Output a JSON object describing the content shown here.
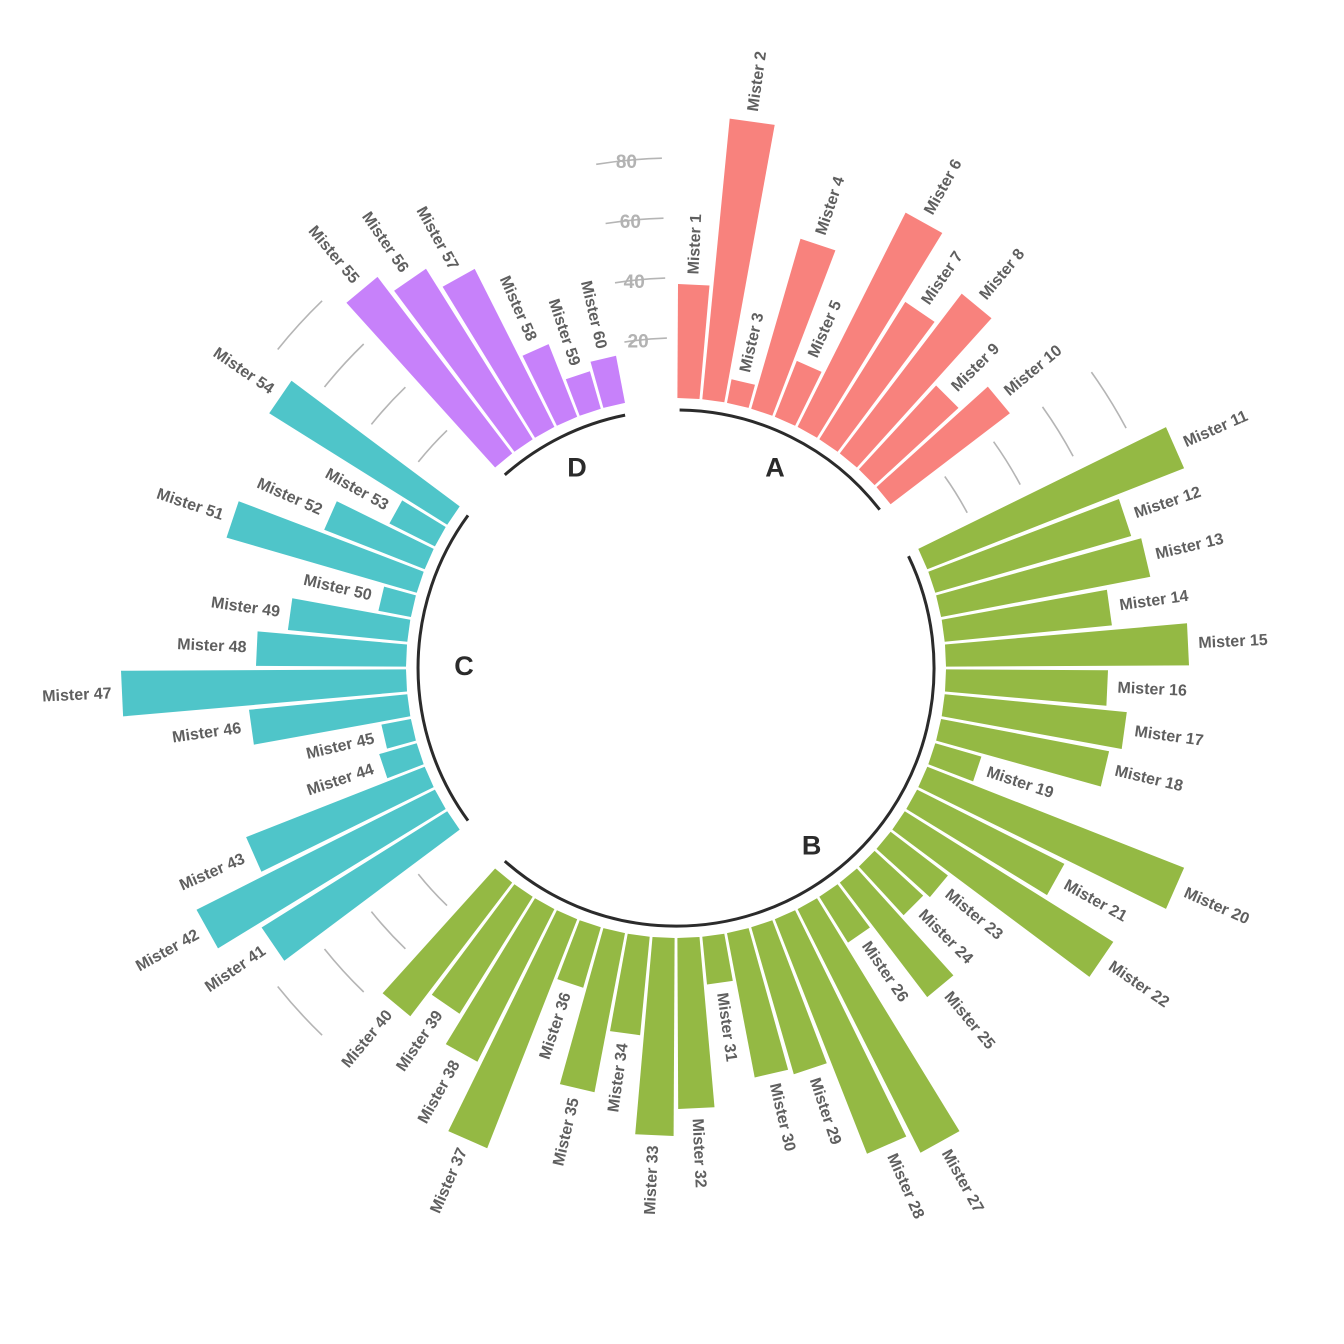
{
  "chart_data": {
    "type": "bar",
    "layout": "circular",
    "title": "",
    "xlabel": "",
    "ylabel": "",
    "ylim": [
      0,
      100
    ],
    "y_ticks": [
      20,
      40,
      60,
      80
    ],
    "y_tick_labels": [
      "20",
      "40",
      "60",
      "80"
    ],
    "grid": true,
    "legend": "none",
    "group_colors": {
      "A": "#f8827d",
      "B": "#94b944",
      "C": "#4fc5c9",
      "D": "#c781fa"
    },
    "groups": [
      "A",
      "B",
      "C",
      "D"
    ],
    "categories": [
      "Mister 1",
      "Mister 2",
      "Mister 3",
      "Mister 4",
      "Mister 5",
      "Mister 6",
      "Mister 7",
      "Mister 8",
      "Mister 9",
      "Mister 10",
      "Mister 11",
      "Mister 12",
      "Mister 13",
      "Mister 14",
      "Mister 15",
      "Mister 16",
      "Mister 17",
      "Mister 18",
      "Mister 19",
      "Mister 20",
      "Mister 21",
      "Mister 22",
      "Mister 23",
      "Mister 24",
      "Mister 25",
      "Mister 26",
      "Mister 27",
      "Mister 28",
      "Mister 29",
      "Mister 30",
      "Mister 31",
      "Mister 32",
      "Mister 33",
      "Mister 34",
      "Mister 35",
      "Mister 36",
      "Mister 37",
      "Mister 38",
      "Mister 39",
      "Mister 40",
      "Mister 41",
      "Mister 42",
      "Mister 43",
      "Mister 44",
      "Mister 45",
      "Mister 46",
      "Mister 47",
      "Mister 48",
      "Mister 49",
      "Mister 50",
      "Mister 51",
      "Mister 52",
      "Mister 53",
      "Mister 54",
      "Mister 55",
      "Mister 56",
      "Mister 57",
      "Mister 58",
      "Mister 59",
      "Mister 60"
    ],
    "bar_groups": [
      "A",
      "A",
      "A",
      "A",
      "A",
      "A",
      "A",
      "A",
      "A",
      "A",
      "B",
      "B",
      "B",
      "B",
      "B",
      "B",
      "B",
      "B",
      "B",
      "B",
      "B",
      "B",
      "B",
      "B",
      "B",
      "B",
      "B",
      "B",
      "B",
      "B",
      "B",
      "B",
      "B",
      "B",
      "B",
      "B",
      "B",
      "B",
      "B",
      "B",
      "C",
      "C",
      "C",
      "C",
      "C",
      "C",
      "C",
      "C",
      "C",
      "C",
      "C",
      "C",
      "C",
      "C",
      "D",
      "D",
      "D",
      "D",
      "D",
      "D"
    ],
    "values": [
      38,
      94,
      8,
      59,
      20,
      80,
      54,
      67,
      38,
      50,
      92,
      68,
      71,
      56,
      81,
      54,
      61,
      57,
      16,
      92,
      55,
      82,
      24,
      22,
      48,
      18,
      91,
      84,
      51,
      49,
      16,
      57,
      66,
      33,
      54,
      21,
      82,
      57,
      46,
      56,
      73,
      89,
      64,
      13,
      10,
      53,
      95,
      50,
      40,
      11,
      66,
      36,
      17,
      70,
      74,
      67,
      59,
      26,
      13,
      16
    ]
  }
}
